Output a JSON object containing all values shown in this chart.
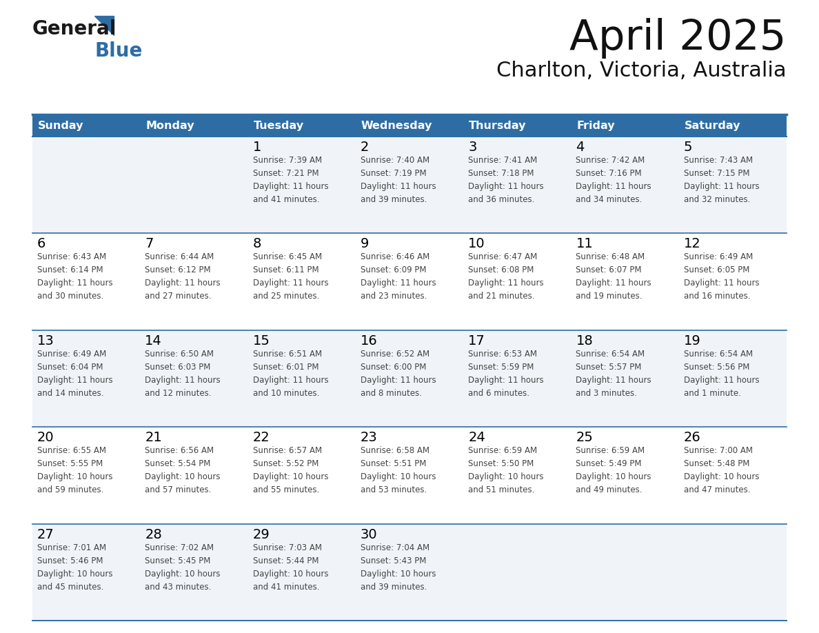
{
  "title": "April 2025",
  "subtitle": "Charlton, Victoria, Australia",
  "header_bg_color": "#2E6DA4",
  "header_text_color": "#FFFFFF",
  "days_of_week": [
    "Sunday",
    "Monday",
    "Tuesday",
    "Wednesday",
    "Thursday",
    "Friday",
    "Saturday"
  ],
  "row_colors": [
    "#F0F4F8",
    "#FFFFFF"
  ],
  "border_color": "#2E6DA4",
  "day_number_color": "#000000",
  "info_text_color": "#444444",
  "calendar_data": [
    [
      {
        "day": "",
        "info": ""
      },
      {
        "day": "",
        "info": ""
      },
      {
        "day": "1",
        "info": "Sunrise: 7:39 AM\nSunset: 7:21 PM\nDaylight: 11 hours\nand 41 minutes."
      },
      {
        "day": "2",
        "info": "Sunrise: 7:40 AM\nSunset: 7:19 PM\nDaylight: 11 hours\nand 39 minutes."
      },
      {
        "day": "3",
        "info": "Sunrise: 7:41 AM\nSunset: 7:18 PM\nDaylight: 11 hours\nand 36 minutes."
      },
      {
        "day": "4",
        "info": "Sunrise: 7:42 AM\nSunset: 7:16 PM\nDaylight: 11 hours\nand 34 minutes."
      },
      {
        "day": "5",
        "info": "Sunrise: 7:43 AM\nSunset: 7:15 PM\nDaylight: 11 hours\nand 32 minutes."
      }
    ],
    [
      {
        "day": "6",
        "info": "Sunrise: 6:43 AM\nSunset: 6:14 PM\nDaylight: 11 hours\nand 30 minutes."
      },
      {
        "day": "7",
        "info": "Sunrise: 6:44 AM\nSunset: 6:12 PM\nDaylight: 11 hours\nand 27 minutes."
      },
      {
        "day": "8",
        "info": "Sunrise: 6:45 AM\nSunset: 6:11 PM\nDaylight: 11 hours\nand 25 minutes."
      },
      {
        "day": "9",
        "info": "Sunrise: 6:46 AM\nSunset: 6:09 PM\nDaylight: 11 hours\nand 23 minutes."
      },
      {
        "day": "10",
        "info": "Sunrise: 6:47 AM\nSunset: 6:08 PM\nDaylight: 11 hours\nand 21 minutes."
      },
      {
        "day": "11",
        "info": "Sunrise: 6:48 AM\nSunset: 6:07 PM\nDaylight: 11 hours\nand 19 minutes."
      },
      {
        "day": "12",
        "info": "Sunrise: 6:49 AM\nSunset: 6:05 PM\nDaylight: 11 hours\nand 16 minutes."
      }
    ],
    [
      {
        "day": "13",
        "info": "Sunrise: 6:49 AM\nSunset: 6:04 PM\nDaylight: 11 hours\nand 14 minutes."
      },
      {
        "day": "14",
        "info": "Sunrise: 6:50 AM\nSunset: 6:03 PM\nDaylight: 11 hours\nand 12 minutes."
      },
      {
        "day": "15",
        "info": "Sunrise: 6:51 AM\nSunset: 6:01 PM\nDaylight: 11 hours\nand 10 minutes."
      },
      {
        "day": "16",
        "info": "Sunrise: 6:52 AM\nSunset: 6:00 PM\nDaylight: 11 hours\nand 8 minutes."
      },
      {
        "day": "17",
        "info": "Sunrise: 6:53 AM\nSunset: 5:59 PM\nDaylight: 11 hours\nand 6 minutes."
      },
      {
        "day": "18",
        "info": "Sunrise: 6:54 AM\nSunset: 5:57 PM\nDaylight: 11 hours\nand 3 minutes."
      },
      {
        "day": "19",
        "info": "Sunrise: 6:54 AM\nSunset: 5:56 PM\nDaylight: 11 hours\nand 1 minute."
      }
    ],
    [
      {
        "day": "20",
        "info": "Sunrise: 6:55 AM\nSunset: 5:55 PM\nDaylight: 10 hours\nand 59 minutes."
      },
      {
        "day": "21",
        "info": "Sunrise: 6:56 AM\nSunset: 5:54 PM\nDaylight: 10 hours\nand 57 minutes."
      },
      {
        "day": "22",
        "info": "Sunrise: 6:57 AM\nSunset: 5:52 PM\nDaylight: 10 hours\nand 55 minutes."
      },
      {
        "day": "23",
        "info": "Sunrise: 6:58 AM\nSunset: 5:51 PM\nDaylight: 10 hours\nand 53 minutes."
      },
      {
        "day": "24",
        "info": "Sunrise: 6:59 AM\nSunset: 5:50 PM\nDaylight: 10 hours\nand 51 minutes."
      },
      {
        "day": "25",
        "info": "Sunrise: 6:59 AM\nSunset: 5:49 PM\nDaylight: 10 hours\nand 49 minutes."
      },
      {
        "day": "26",
        "info": "Sunrise: 7:00 AM\nSunset: 5:48 PM\nDaylight: 10 hours\nand 47 minutes."
      }
    ],
    [
      {
        "day": "27",
        "info": "Sunrise: 7:01 AM\nSunset: 5:46 PM\nDaylight: 10 hours\nand 45 minutes."
      },
      {
        "day": "28",
        "info": "Sunrise: 7:02 AM\nSunset: 5:45 PM\nDaylight: 10 hours\nand 43 minutes."
      },
      {
        "day": "29",
        "info": "Sunrise: 7:03 AM\nSunset: 5:44 PM\nDaylight: 10 hours\nand 41 minutes."
      },
      {
        "day": "30",
        "info": "Sunrise: 7:04 AM\nSunset: 5:43 PM\nDaylight: 10 hours\nand 39 minutes."
      },
      {
        "day": "",
        "info": ""
      },
      {
        "day": "",
        "info": ""
      },
      {
        "day": "",
        "info": ""
      }
    ]
  ],
  "logo_general_color": "#1a1a1a",
  "logo_blue_color": "#2E6DA4",
  "fig_bg_color": "#FFFFFF",
  "fig_width": 11.88,
  "fig_height": 9.18,
  "dpi": 100
}
